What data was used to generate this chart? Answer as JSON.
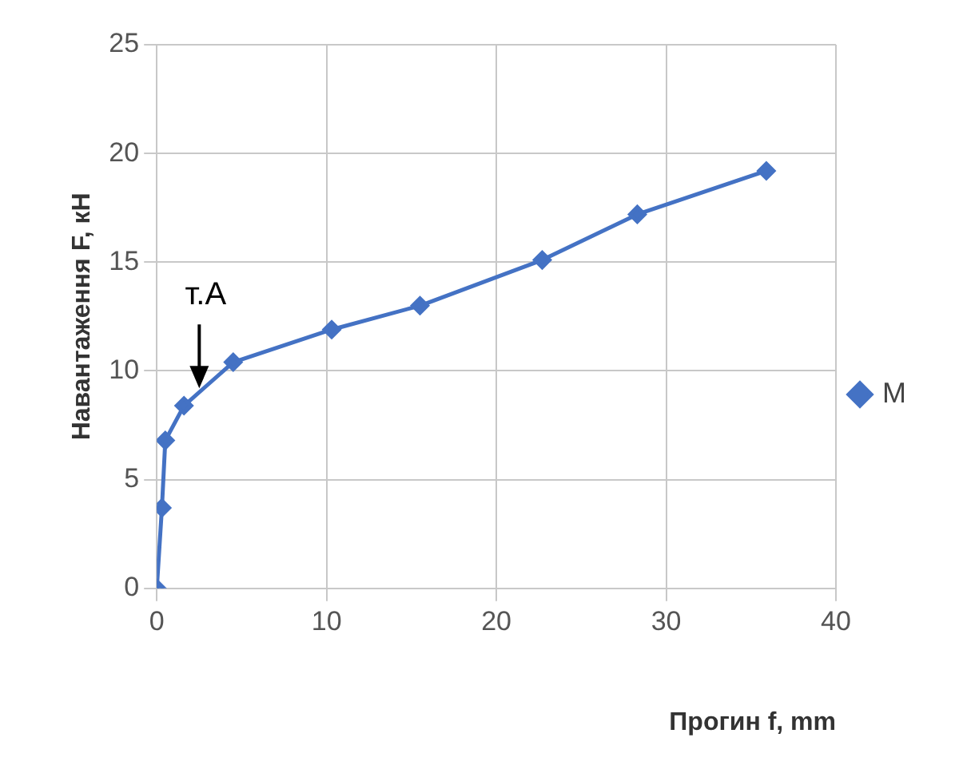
{
  "chart_data": {
    "type": "line",
    "xlabel": "Прогин f, mm",
    "ylabel": "Навантаження F, кН",
    "x": [
      0,
      0.3,
      0.5,
      1.6,
      4.5,
      10.3,
      15.5,
      22.7,
      28.3,
      35.9
    ],
    "series": [
      {
        "name": "M",
        "color": "#4472c4",
        "values": [
          0,
          3.7,
          6.8,
          8.4,
          10.4,
          11.9,
          13,
          15.1,
          17.2,
          19.2
        ]
      }
    ],
    "xlim": [
      0,
      40
    ],
    "xticks": [
      0,
      10,
      20,
      30,
      40
    ],
    "ylim": [
      0,
      25
    ],
    "yticks": [
      0,
      5,
      10,
      15,
      20,
      25
    ],
    "grid": true,
    "legend": "right",
    "marker": "diamond",
    "line_style": "solid",
    "annotations": [
      {
        "text": "т.A",
        "x": 2.5,
        "y": 9.2
      }
    ]
  }
}
